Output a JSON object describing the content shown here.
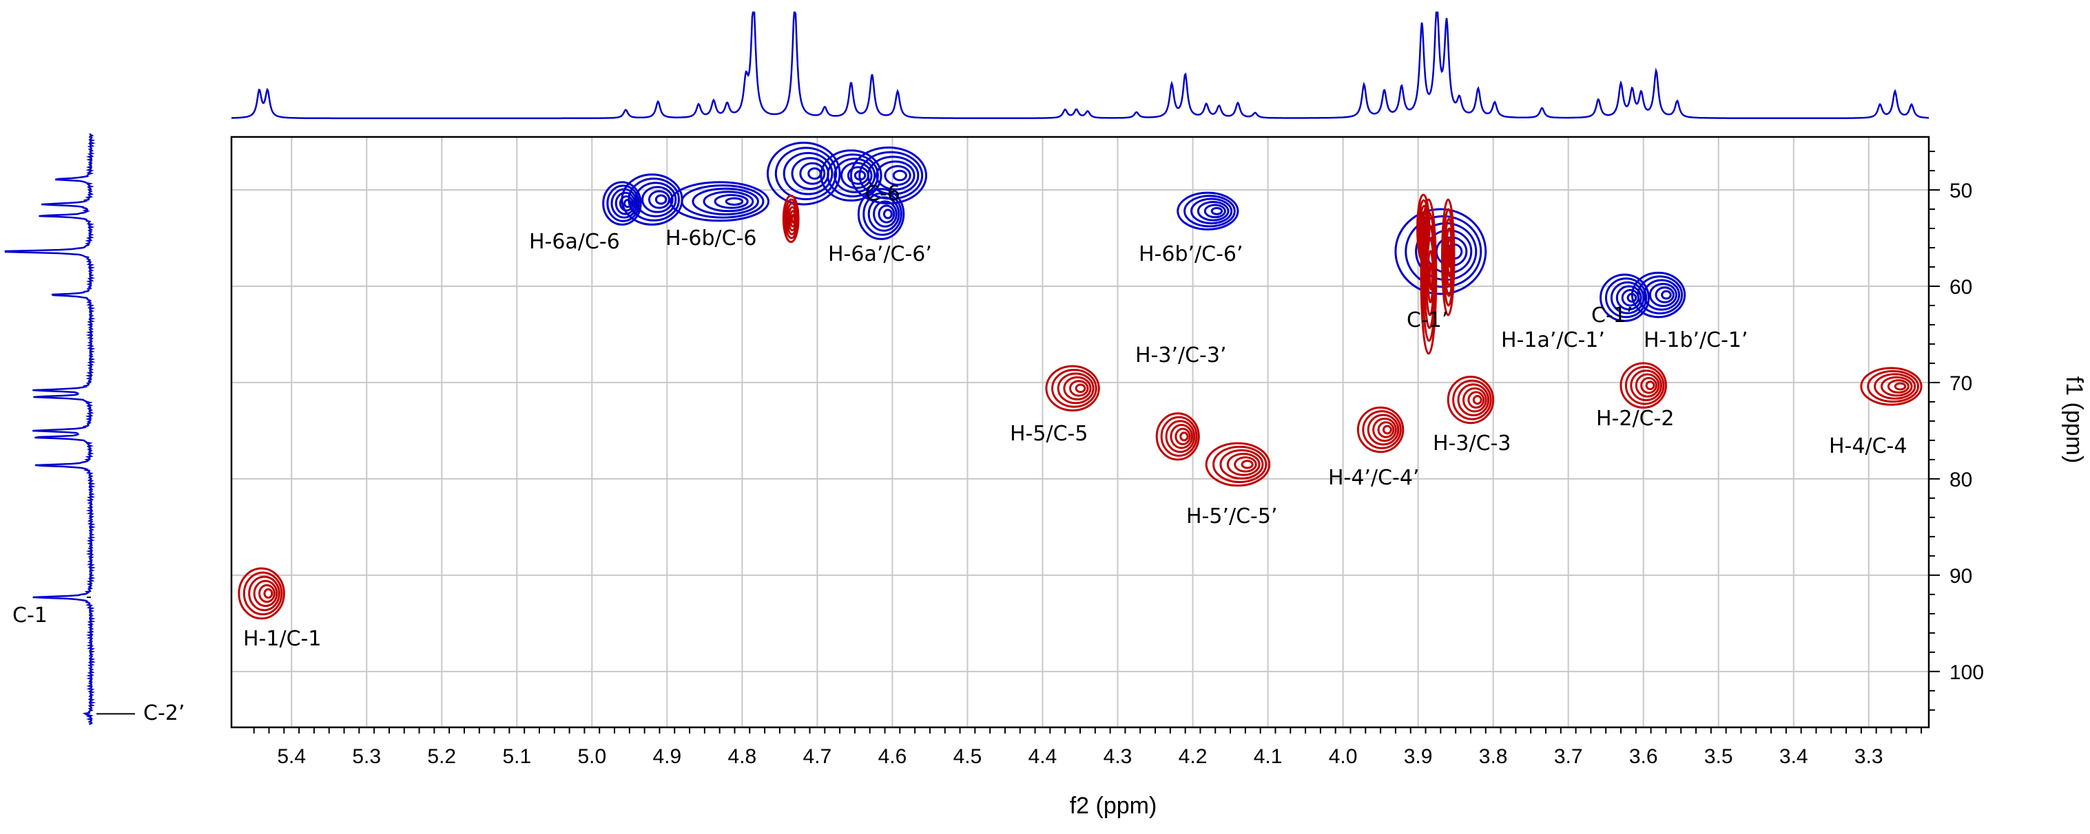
{
  "chart_data": {
    "type": "hsqc_2d_nmr",
    "title": "",
    "xlabel": "f2 (ppm)",
    "ylabel": "f1 (ppm)",
    "xlim": [
      5.48,
      3.22
    ],
    "ylim": [
      44.5,
      105.8
    ],
    "grid": true,
    "x_ticks": [
      5.4,
      5.3,
      5.2,
      5.1,
      5.0,
      4.9,
      4.8,
      4.7,
      4.6,
      4.5,
      4.4,
      4.3,
      4.2,
      4.1,
      4.0,
      3.9,
      3.8,
      3.7,
      3.6,
      3.5,
      3.4,
      3.3
    ],
    "x_tick_labels": [
      "5.4",
      "5.3",
      "5.2",
      "5.1",
      "5.0",
      "4.9",
      "4.8",
      "4.7",
      "4.6",
      "4.5",
      "4.4",
      "4.3",
      "4.2",
      "4.1",
      "4.0",
      "3.9",
      "3.8",
      "3.7",
      "3.6",
      "3.5",
      "3.4",
      "3.3"
    ],
    "y_ticks": [
      50,
      60,
      70,
      80,
      90,
      100
    ],
    "y_tick_labels": [
      "50",
      "60",
      "70",
      "80",
      "90",
      "100"
    ],
    "series_colors": {
      "positive": "#c00000",
      "negative": "#0000cc"
    },
    "cross_peaks": [
      {
        "label": "H-1/C-1",
        "h": 5.44,
        "c": 91.9,
        "phase": "positive",
        "w": 0.03,
        "hgt": 2.6
      },
      {
        "label": "H-6a/C-6",
        "h": 4.92,
        "c": 51.0,
        "phase": "negative",
        "w": 0.04,
        "hgt": 2.6
      },
      {
        "label": "",
        "h": 4.96,
        "c": 51.4,
        "phase": "negative",
        "w": 0.025,
        "hgt": 2.2
      },
      {
        "label": "H-6b/C-6",
        "h": 4.83,
        "c": 51.2,
        "phase": "negative",
        "w": 0.065,
        "hgt": 2.0
      },
      {
        "label": "",
        "h": 4.718,
        "c": 48.3,
        "phase": "negative",
        "w": 0.048,
        "hgt": 3.2
      },
      {
        "label": "",
        "h": 4.655,
        "c": 48.5,
        "phase": "negative",
        "w": 0.04,
        "hgt": 2.6
      },
      {
        "label": "",
        "h": 4.605,
        "c": 48.5,
        "phase": "negative",
        "w": 0.05,
        "hgt": 2.9
      },
      {
        "label": "H-6a’/C-6’",
        "h": 4.615,
        "c": 52.5,
        "phase": "negative",
        "w": 0.03,
        "hgt": 2.6
      },
      {
        "label": "",
        "h": 4.735,
        "c": 53.0,
        "phase": "positive",
        "w": 0.01,
        "hgt": 2.4
      },
      {
        "label": "H-6b’/C-6’",
        "h": 4.18,
        "c": 52.2,
        "phase": "negative",
        "w": 0.04,
        "hgt": 1.9
      },
      {
        "label": "",
        "h": 3.87,
        "c": 56.4,
        "phase": "negative",
        "w": 0.06,
        "hgt": 4.4
      },
      {
        "label": "",
        "h": 3.893,
        "c": 54.0,
        "phase": "positive",
        "w": 0.008,
        "hgt": 3.5
      },
      {
        "label": "",
        "h": 3.886,
        "c": 59.0,
        "phase": "positive",
        "w": 0.01,
        "hgt": 8.0
      },
      {
        "label": "",
        "h": 3.86,
        "c": 57.0,
        "phase": "positive",
        "w": 0.008,
        "hgt": 6.0
      },
      {
        "label": "H-1a’/C-1’",
        "h": 3.625,
        "c": 61.2,
        "phase": "negative",
        "w": 0.032,
        "hgt": 2.4
      },
      {
        "label": "H-1b’/C-1’",
        "h": 3.58,
        "c": 60.9,
        "phase": "negative",
        "w": 0.035,
        "hgt": 2.3
      },
      {
        "label": "H-5/C-5",
        "h": 4.36,
        "c": 70.6,
        "phase": "positive",
        "w": 0.035,
        "hgt": 2.3
      },
      {
        "label": "H-3’/C-3’",
        "h": 4.22,
        "c": 75.6,
        "phase": "positive",
        "w": 0.028,
        "hgt": 2.4
      },
      {
        "label": "H-5’/C-5’",
        "h": 4.14,
        "c": 78.5,
        "phase": "positive",
        "w": 0.042,
        "hgt": 2.2
      },
      {
        "label": "H-4’/C-4’",
        "h": 3.95,
        "c": 74.9,
        "phase": "positive",
        "w": 0.03,
        "hgt": 2.3
      },
      {
        "label": "H-3/C-3",
        "h": 3.83,
        "c": 71.8,
        "phase": "positive",
        "w": 0.03,
        "hgt": 2.4
      },
      {
        "label": "H-2/C-2",
        "h": 3.6,
        "c": 70.3,
        "phase": "positive",
        "w": 0.03,
        "hgt": 2.3
      },
      {
        "label": "H-4/C-4",
        "h": 3.27,
        "c": 70.4,
        "phase": "positive",
        "w": 0.04,
        "hgt": 1.9
      }
    ],
    "overlapping_labels": [
      "C-6",
      "C-1’",
      "C-1’"
    ],
    "f2_projection_peaks": [
      {
        "ppm": 5.443,
        "height": 0.32
      },
      {
        "ppm": 5.432,
        "height": 0.32
      },
      {
        "ppm": 4.955,
        "height": 0.1
      },
      {
        "ppm": 4.912,
        "height": 0.2
      },
      {
        "ppm": 4.858,
        "height": 0.16
      },
      {
        "ppm": 4.838,
        "height": 0.2
      },
      {
        "ppm": 4.82,
        "height": 0.16
      },
      {
        "ppm": 4.795,
        "height": 0.4
      },
      {
        "ppm": 4.785,
        "height": 1.4
      },
      {
        "ppm": 4.73,
        "height": 1.4
      },
      {
        "ppm": 4.69,
        "height": 0.12
      },
      {
        "ppm": 4.655,
        "height": 0.42
      },
      {
        "ppm": 4.627,
        "height": 0.52
      },
      {
        "ppm": 4.593,
        "height": 0.32
      },
      {
        "ppm": 4.37,
        "height": 0.1
      },
      {
        "ppm": 4.355,
        "height": 0.1
      },
      {
        "ppm": 4.34,
        "height": 0.08
      },
      {
        "ppm": 4.275,
        "height": 0.07
      },
      {
        "ppm": 4.228,
        "height": 0.4
      },
      {
        "ppm": 4.21,
        "height": 0.52
      },
      {
        "ppm": 4.182,
        "height": 0.16
      },
      {
        "ppm": 4.165,
        "height": 0.14
      },
      {
        "ppm": 4.14,
        "height": 0.18
      },
      {
        "ppm": 4.117,
        "height": 0.06
      },
      {
        "ppm": 3.972,
        "height": 0.4
      },
      {
        "ppm": 3.945,
        "height": 0.32
      },
      {
        "ppm": 3.922,
        "height": 0.36
      },
      {
        "ppm": 3.895,
        "height": 1.1
      },
      {
        "ppm": 3.875,
        "height": 1.3
      },
      {
        "ppm": 3.862,
        "height": 1.1
      },
      {
        "ppm": 3.845,
        "height": 0.2
      },
      {
        "ppm": 3.82,
        "height": 0.34
      },
      {
        "ppm": 3.798,
        "height": 0.18
      },
      {
        "ppm": 3.735,
        "height": 0.12
      },
      {
        "ppm": 3.66,
        "height": 0.22
      },
      {
        "ppm": 3.63,
        "height": 0.4
      },
      {
        "ppm": 3.615,
        "height": 0.32
      },
      {
        "ppm": 3.603,
        "height": 0.28
      },
      {
        "ppm": 3.583,
        "height": 0.56
      },
      {
        "ppm": 3.555,
        "height": 0.2
      },
      {
        "ppm": 3.285,
        "height": 0.16
      },
      {
        "ppm": 3.265,
        "height": 0.32
      },
      {
        "ppm": 3.243,
        "height": 0.16
      }
    ],
    "f1_projection_peaks": [
      {
        "ppm": 48.9,
        "height": 0.36,
        "label": ""
      },
      {
        "ppm": 51.5,
        "height": 0.48,
        "label": ""
      },
      {
        "ppm": 52.7,
        "height": 0.5,
        "label": ""
      },
      {
        "ppm": 56.4,
        "height": 1.0,
        "label": ""
      },
      {
        "ppm": 60.9,
        "height": 0.4,
        "label": ""
      },
      {
        "ppm": 70.8,
        "height": 0.55,
        "label": ""
      },
      {
        "ppm": 71.5,
        "height": 0.55,
        "label": ""
      },
      {
        "ppm": 75.0,
        "height": 0.55,
        "label": ""
      },
      {
        "ppm": 75.7,
        "height": 0.55,
        "label": ""
      },
      {
        "ppm": 78.6,
        "height": 0.55,
        "label": ""
      },
      {
        "ppm": 92.3,
        "height": 0.55,
        "label": "C-1"
      },
      {
        "ppm": 104.4,
        "height": 0.05,
        "label": "C-2’"
      }
    ]
  }
}
